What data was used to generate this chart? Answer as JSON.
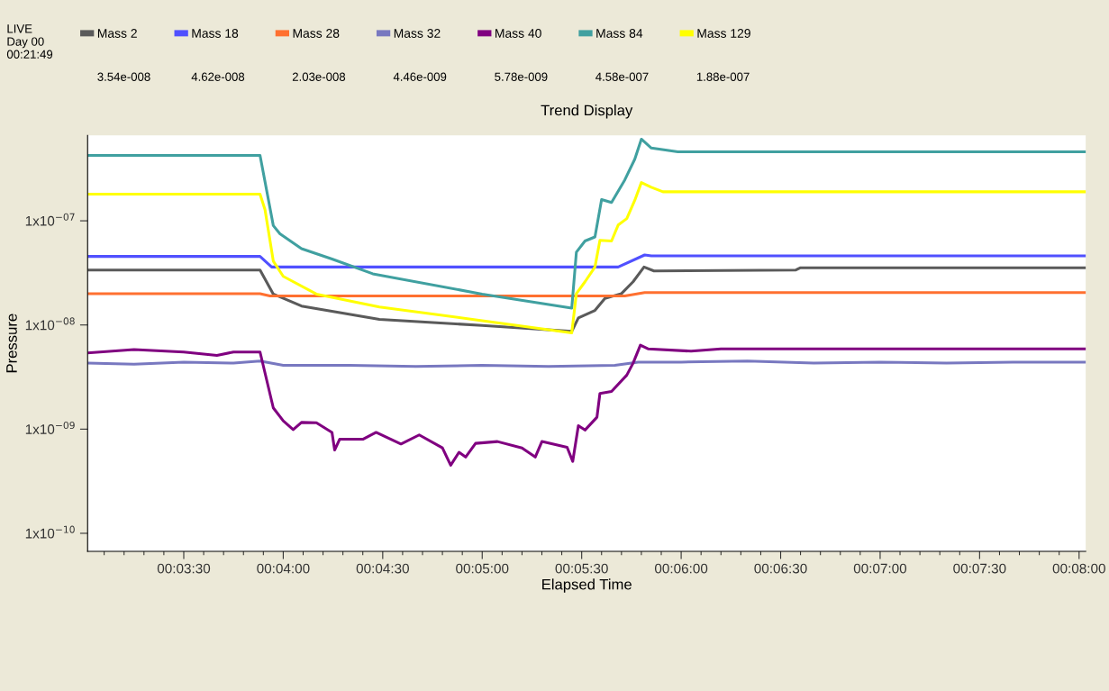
{
  "chart_data": {
    "type": "line",
    "title": "Trend Display",
    "xlabel": "Elapsed Time",
    "ylabel": "Pressure",
    "log": "y",
    "legend": "top",
    "grid": false,
    "marker": "none",
    "line_style": "solid",
    "xlim": [
      181,
      482
    ],
    "ylim": [
      6.7e-11,
      6.6e-07
    ],
    "xticks": [
      {
        "value": 210,
        "label": "00:03:30"
      },
      {
        "value": 240,
        "label": "00:04:00"
      },
      {
        "value": 270,
        "label": "00:04:30"
      },
      {
        "value": 300,
        "label": "00:05:00"
      },
      {
        "value": 330,
        "label": "00:05:30"
      },
      {
        "value": 360,
        "label": "00:06:00"
      },
      {
        "value": 390,
        "label": "00:06:30"
      },
      {
        "value": 420,
        "label": "00:07:00"
      },
      {
        "value": 450,
        "label": "00:07:30"
      },
      {
        "value": 480,
        "label": "00:08:00"
      }
    ],
    "yticks": [
      {
        "value": 1e-10,
        "label": "1x10$^{−10}$"
      },
      {
        "value": 1e-09,
        "label": "1x10$^{−09}$"
      },
      {
        "value": 1e-08,
        "label": "1x10$^{−08}$"
      },
      {
        "value": 1e-07,
        "label": "1x10$^{−07}$"
      }
    ],
    "annotations": [
      "LIVE\nDay 00\n00:21:49",
      "3.54e-008",
      "4.62e-008",
      "2.03e-008",
      "4.46e-009",
      "5.78e-009",
      "4.58e-007",
      "1.88e-007"
    ],
    "series": [
      {
        "name": "Mass 2",
        "color": "#5a5a5a",
        "x": [
          181,
          233,
          237,
          245.5,
          269,
          300,
          327,
          329,
          334,
          337,
          342,
          345.5,
          348.8,
          351.8,
          394.6,
          396,
          482
        ],
        "values": [
          3.37e-08,
          3.37e-08,
          1.98e-08,
          1.52e-08,
          1.13e-08,
          9.9e-09,
          8.7e-09,
          1.17e-08,
          1.38e-08,
          1.8e-08,
          2e-08,
          2.6e-08,
          3.6e-08,
          3.3e-08,
          3.37e-08,
          3.54e-08,
          3.54e-08
        ]
      },
      {
        "name": "Mass 18",
        "color": "#5050ff",
        "x": [
          181,
          233,
          236.5,
          341,
          349,
          351,
          482
        ],
        "values": [
          4.55e-08,
          4.55e-08,
          3.6e-08,
          3.6e-08,
          4.7e-08,
          4.6e-08,
          4.6e-08
        ]
      },
      {
        "name": "Mass 28",
        "color": "#ff7030",
        "x": [
          181,
          233,
          236,
          343,
          349,
          482
        ],
        "values": [
          2e-08,
          2e-08,
          1.9e-08,
          1.9e-08,
          2.05e-08,
          2.05e-08
        ]
      },
      {
        "name": "Mass 32",
        "color": "#7878c0",
        "x": [
          181,
          195,
          210,
          225,
          233,
          240,
          260,
          280,
          300,
          320,
          340,
          347,
          360,
          380,
          400,
          420,
          440,
          460,
          482
        ],
        "values": [
          4.3e-09,
          4.2e-09,
          4.4e-09,
          4.3e-09,
          4.5e-09,
          4.1e-09,
          4.1e-09,
          4e-09,
          4.1e-09,
          4e-09,
          4.1e-09,
          4.4e-09,
          4.4e-09,
          4.5e-09,
          4.3e-09,
          4.4e-09,
          4.3e-09,
          4.4e-09,
          4.4e-09
        ]
      },
      {
        "name": "Mass 40",
        "color": "#800080",
        "x": [
          181,
          195,
          210,
          220,
          225,
          233,
          237,
          240,
          243,
          245.5,
          250,
          254.7,
          255.5,
          257,
          264,
          268,
          275.5,
          281,
          288,
          290.5,
          293,
          295,
          298,
          304.6,
          312,
          316,
          318,
          325.6,
          327.3,
          329,
          331,
          334.6,
          335.5,
          339,
          343.6,
          345.5,
          347.7,
          350,
          363,
          372,
          482
        ],
        "values": [
          5.4e-09,
          5.8e-09,
          5.5e-09,
          5.1e-09,
          5.5e-09,
          5.5e-09,
          1.6e-09,
          1.2e-09,
          9.9e-10,
          1.16e-09,
          1.15e-09,
          9.3e-10,
          6.3e-10,
          8e-10,
          8e-10,
          9.3e-10,
          7.2e-10,
          8.8e-10,
          6.6e-10,
          4.5e-10,
          6e-10,
          5.4e-10,
          7.3e-10,
          7.6e-10,
          6.6e-10,
          5.4e-10,
          7.6e-10,
          6.7e-10,
          4.9e-10,
          1.08e-09,
          9.8e-10,
          1.3e-09,
          2.2e-09,
          2.3e-09,
          3.3e-09,
          4.3e-09,
          6.4e-09,
          5.9e-09,
          5.6e-09,
          5.9e-09,
          5.9e-09
        ]
      },
      {
        "name": "Mass 84",
        "color": "#40a0a0",
        "x": [
          181,
          233,
          237,
          239,
          245.5,
          254.7,
          267,
          300,
          327,
          328.4,
          331,
          334,
          336,
          339,
          343,
          346,
          348,
          351,
          359,
          482
        ],
        "values": [
          4.25e-07,
          4.25e-07,
          9e-08,
          7.5e-08,
          5.4e-08,
          4.3e-08,
          3.1e-08,
          1.98e-08,
          1.45e-08,
          5e-08,
          6.4e-08,
          7e-08,
          1.6e-07,
          1.5e-07,
          2.47e-07,
          3.9e-07,
          6.08e-07,
          5e-07,
          4.6e-07,
          4.6e-07
        ]
      },
      {
        "name": "Mass 129",
        "color": "#ffff00",
        "x": [
          181,
          233,
          234.5,
          237,
          240,
          250,
          269,
          300,
          327,
          328.4,
          331,
          334,
          335.5,
          339,
          341,
          343.6,
          346,
          348,
          351,
          354.5,
          482
        ],
        "values": [
          1.8e-07,
          1.8e-07,
          1.28e-07,
          4.1e-08,
          2.93e-08,
          1.98e-08,
          1.49e-08,
          1.1e-08,
          8.4e-09,
          2e-08,
          2.6e-08,
          3.6e-08,
          6.5e-08,
          6.4e-08,
          9.1e-08,
          1.05e-07,
          1.57e-07,
          2.33e-07,
          2.1e-07,
          1.9e-07,
          1.9e-07
        ]
      }
    ]
  }
}
